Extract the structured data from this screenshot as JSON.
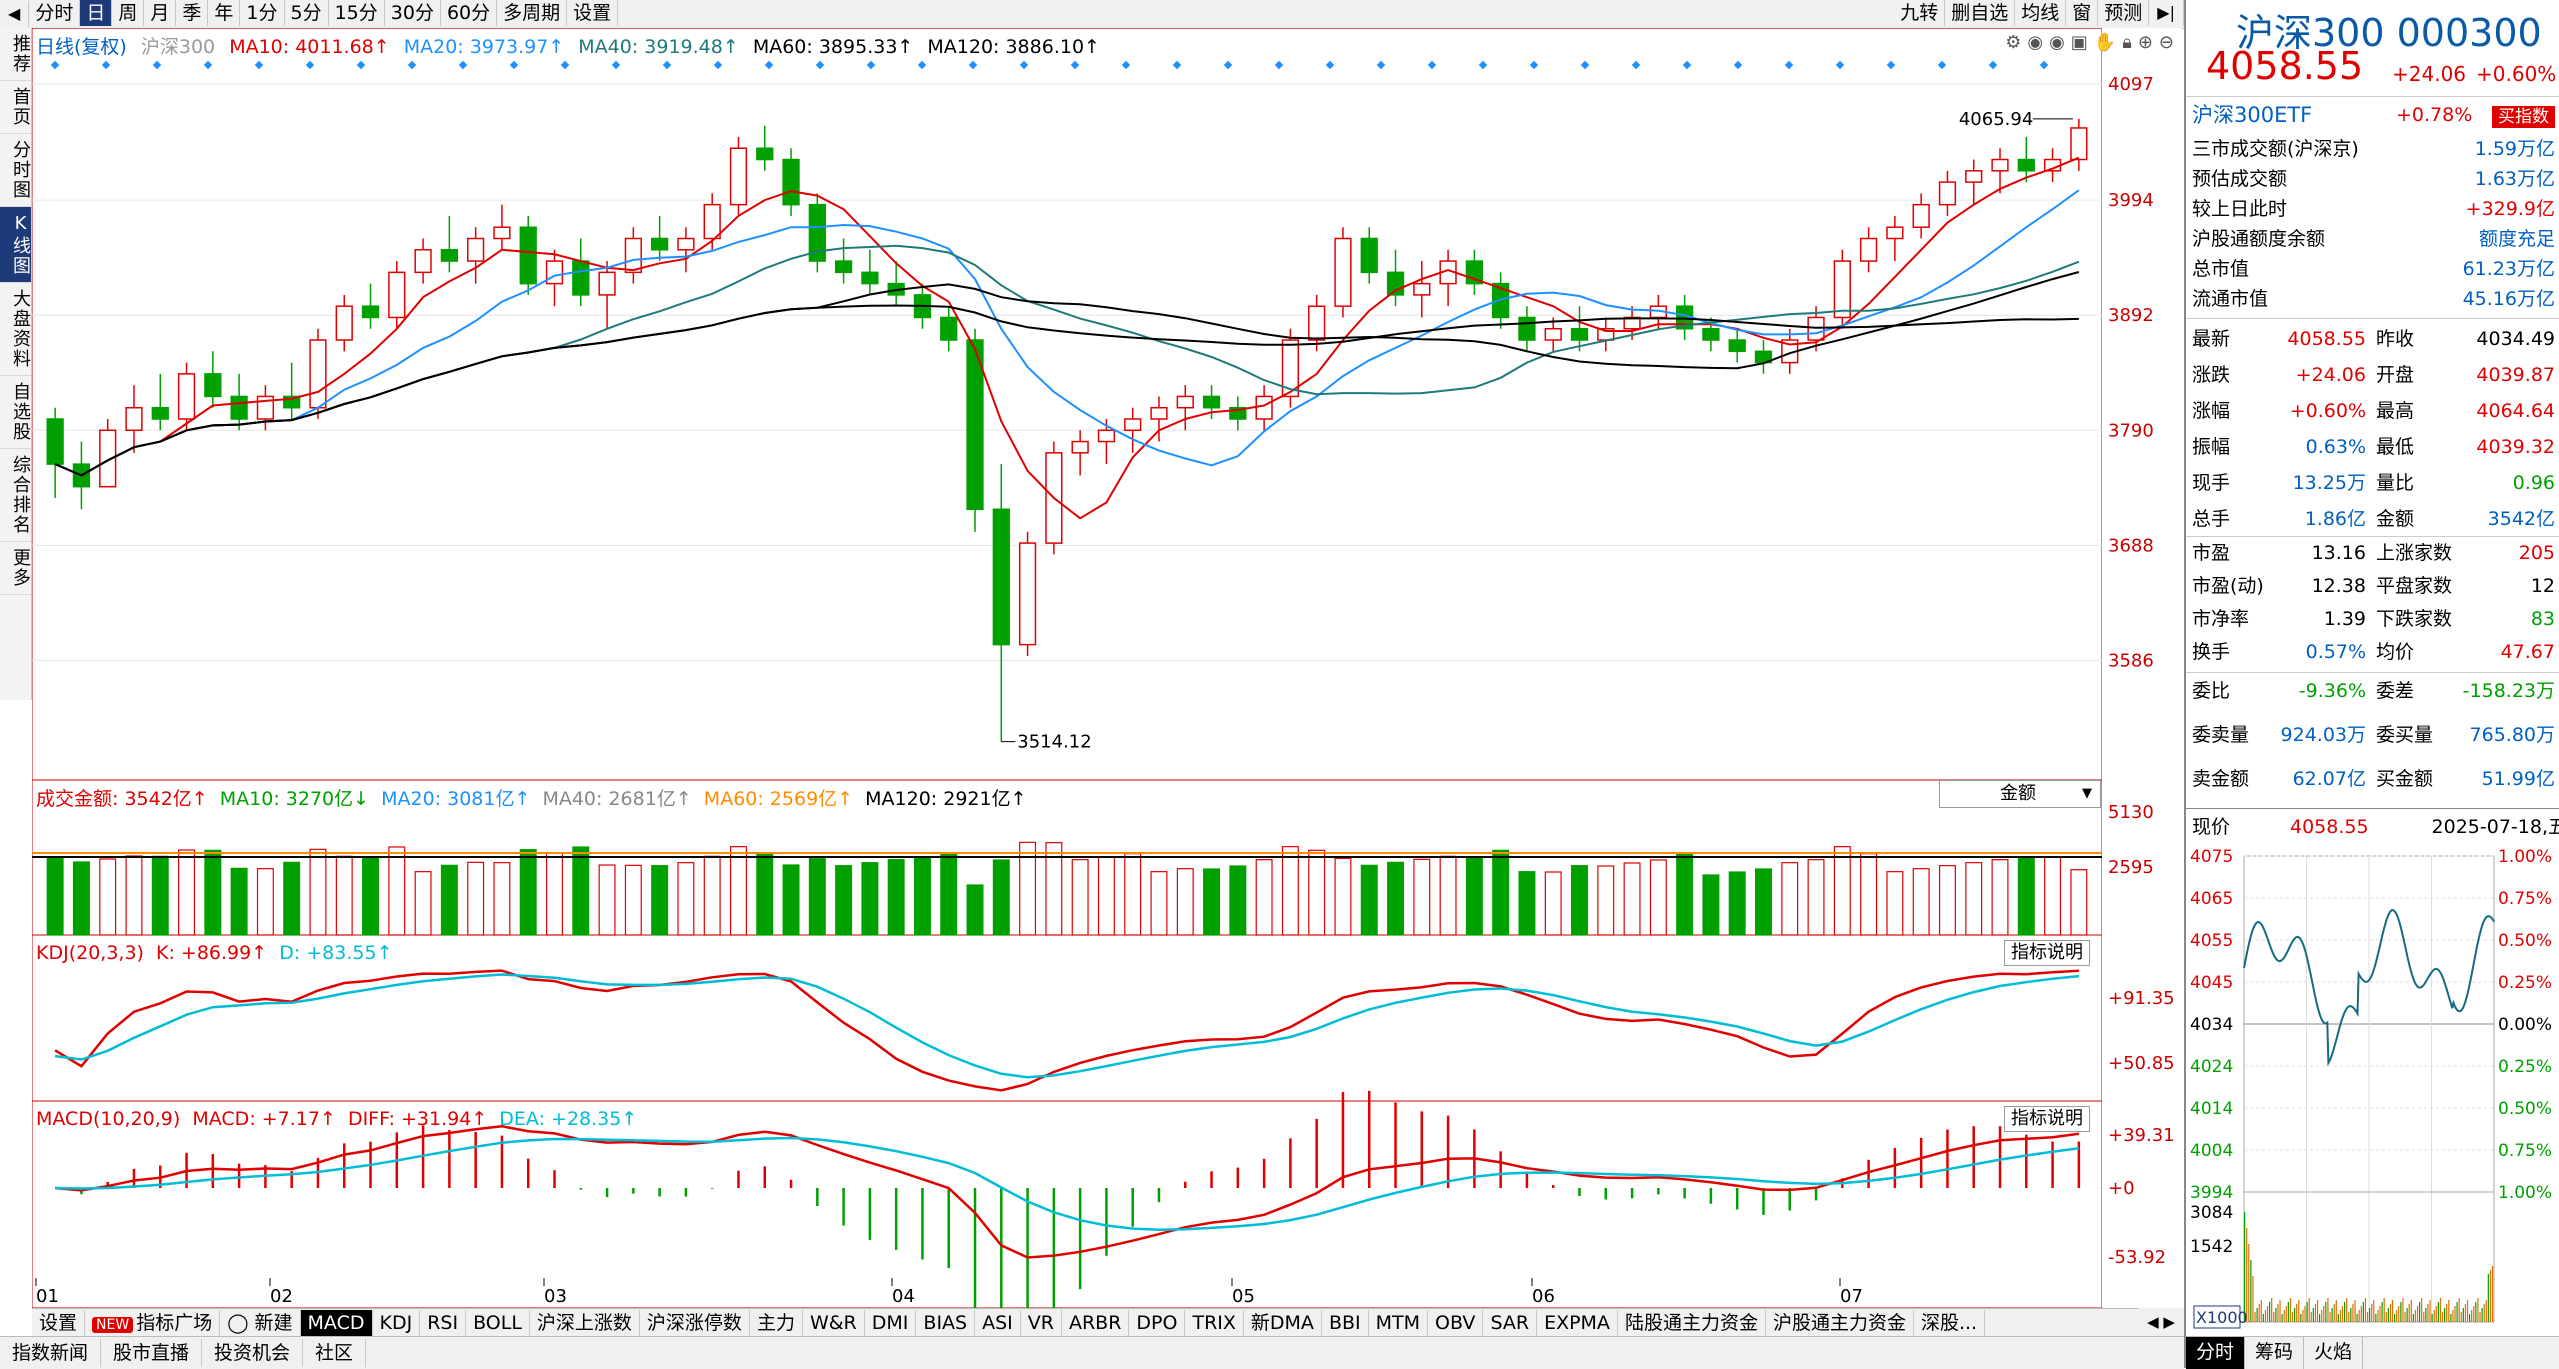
{
  "toolbar": {
    "tabs": [
      "分时",
      "日",
      "周",
      "月",
      "季",
      "年",
      "1分",
      "5分",
      "15分",
      "30分",
      "60分",
      "多周期",
      "设置"
    ],
    "selected_tab": "日",
    "right_tabs": [
      "九转",
      "删自选",
      "均线",
      "窗",
      "预测"
    ]
  },
  "left_nav": [
    "推荐",
    "首页",
    "分时图",
    "K线图",
    "大盘资料",
    "自选股",
    "综合排名",
    "更多"
  ],
  "left_nav_selected": "K线图",
  "main_chart": {
    "header": {
      "label": "日线(复权)",
      "name": "沪深300",
      "ma10": "MA10: 4011.68↑",
      "ma20": "MA20: 3973.97↑",
      "ma40": "MA40: 3919.48↑",
      "ma60": "MA60: 3895.33↑",
      "ma120": "MA120: 3886.10↑"
    },
    "y_ticks": [
      "4097",
      "3994",
      "3892",
      "3790",
      "3688",
      "3586"
    ],
    "high_label": "4065.94",
    "low_label": "3514.12",
    "ylim": [
      3480,
      4120
    ]
  },
  "volume_panel": {
    "label": "成交金额: 3542亿↑",
    "ma10": "MA10: 3270亿↓",
    "ma20": "MA20: 3081亿↑",
    "ma40": "MA40: 2681亿↑",
    "ma60": "MA60: 2569亿↑",
    "ma120": "MA120: 2921亿↑",
    "selector": "金额",
    "y_ticks": [
      "5130",
      "2595"
    ]
  },
  "kdj_panel": {
    "label": "KDJ(20,3,3)",
    "k": "K: +86.99↑",
    "d": "D: +83.55↑",
    "button": "指标说明",
    "y_ticks": [
      "+91.35",
      "+50.85"
    ]
  },
  "macd_panel": {
    "label": "MACD(10,20,9)",
    "macd": "MACD: +7.17↑",
    "diff": "DIFF: +31.94↑",
    "dea": "DEA: +28.35↑",
    "button": "指标说明",
    "y_ticks": [
      "+39.31",
      "+0",
      "-53.92"
    ]
  },
  "x_axis_months": [
    "01",
    "02",
    "03",
    "04",
    "05",
    "06",
    "07"
  ],
  "bottom_tabs": [
    "设置",
    "指标广场",
    "新建",
    "MACD",
    "KDJ",
    "RSI",
    "BOLL",
    "沪深上涨数",
    "沪深涨停数",
    "主力",
    "W&R",
    "DMI",
    "BIAS",
    "ASI",
    "VR",
    "ARBR",
    "DPO",
    "TRIX",
    "新DMA",
    "BBI",
    "MTM",
    "OBV",
    "SAR",
    "EXPMA",
    "陆股通主力资金",
    "沪股通主力资金",
    "深股..."
  ],
  "bottom_selected": "MACD",
  "bottom_links": [
    "指数新闻",
    "股市直播",
    "投资机会",
    "社区"
  ],
  "quote": {
    "title": "沪深300 000300",
    "price": "4058.55",
    "change": "+24.06",
    "change_pct": "+0.60%",
    "etf_name": "沪深300ETF",
    "etf_pct": "+0.78%",
    "etf_button": "买指数",
    "stats": [
      {
        "label": "三市成交额(沪深京)",
        "value": "1.59万亿",
        "color": "blue"
      },
      {
        "label": "预估成交额",
        "value": "1.63万亿",
        "color": "blue"
      },
      {
        "label": "较上日此时",
        "value": "+329.9亿",
        "color": "red"
      },
      {
        "label": "沪股通额度余额",
        "value": "额度充足",
        "color": "blue"
      },
      {
        "label": "总市值",
        "value": "61.23万亿",
        "color": "blue"
      },
      {
        "label": "流通市值",
        "value": "45.16万亿",
        "color": "blue"
      }
    ],
    "grid": [
      {
        "l1": "最新",
        "v1": "4058.55",
        "c1": "red",
        "l2": "昨收",
        "v2": "4034.49",
        "c2": "black"
      },
      {
        "l1": "涨跌",
        "v1": "+24.06",
        "c1": "red",
        "l2": "开盘",
        "v2": "4039.87",
        "c2": "red"
      },
      {
        "l1": "涨幅",
        "v1": "+0.60%",
        "c1": "red",
        "l2": "最高",
        "v2": "4064.64",
        "c2": "red"
      },
      {
        "l1": "振幅",
        "v1": "0.63%",
        "c1": "blue",
        "l2": "最低",
        "v2": "4039.32",
        "c2": "red"
      },
      {
        "l1": "现手",
        "v1": "13.25万",
        "c1": "blue",
        "l2": "量比",
        "v2": "0.96",
        "c2": "green"
      },
      {
        "l1": "总手",
        "v1": "1.86亿",
        "c1": "blue",
        "l2": "金额",
        "v2": "3542亿",
        "c2": "blue"
      }
    ],
    "grid2": [
      {
        "l1": "市盈",
        "v1": "13.16",
        "c1": "black",
        "l2": "上涨家数",
        "v2": "205",
        "c2": "red"
      },
      {
        "l1": "市盈(动)",
        "v1": "12.38",
        "c1": "black",
        "l2": "平盘家数",
        "v2": "12",
        "c2": "black"
      },
      {
        "l1": "市净率",
        "v1": "1.39",
        "c1": "black",
        "l2": "下跌家数",
        "v2": "83",
        "c2": "green"
      },
      {
        "l1": "换手",
        "v1": "0.57%",
        "c1": "blue",
        "l2": "均价",
        "v2": "47.67",
        "c2": "red"
      }
    ],
    "grid3": [
      {
        "l1": "委比",
        "v1": "-9.36%",
        "c1": "green",
        "l2": "委差",
        "v2": "-158.23万",
        "c2": "green"
      },
      {
        "l1": "委卖量",
        "v1": "924.03万",
        "c1": "blue",
        "l2": "委买量",
        "v2": "765.80万",
        "c2": "blue"
      },
      {
        "l1": "卖金额",
        "v1": "62.07亿",
        "c1": "blue",
        "l2": "买金额",
        "v2": "51.99亿",
        "c2": "blue"
      }
    ],
    "mini_header": {
      "label": "现价",
      "price": "4058.55",
      "date": "2025-07-18,五"
    },
    "mini_left_ticks": [
      "4075",
      "4065",
      "4055",
      "4045",
      "4034",
      "4024",
      "4014",
      "4004",
      "3994"
    ],
    "mini_right_ticks": [
      "1.00%",
      "0.75%",
      "0.50%",
      "0.25%",
      "0.00%",
      "0.25%",
      "0.50%",
      "0.75%",
      "1.00%"
    ],
    "mini_vol_ticks": [
      "3084",
      "1542"
    ],
    "mini_zoom": "X1000",
    "mini_tabs": [
      "分时",
      "筹码",
      "火焰"
    ]
  },
  "colors": {
    "up": "#e00000",
    "down": "#00a000",
    "ma10": "#e00000",
    "ma20": "#1e90ff",
    "ma40": "#1f7a7a",
    "ma60": "#000000",
    "ma120": "#000000"
  },
  "chart_data": {
    "type": "candlestick",
    "title": "沪深300",
    "x": [
      "01",
      "02",
      "03",
      "04",
      "05",
      "06",
      "07"
    ],
    "ylim": [
      3480,
      4120
    ],
    "ohlc_approx": [
      [
        3800,
        3810,
        3730,
        3760
      ],
      [
        3760,
        3780,
        3720,
        3740
      ],
      [
        3740,
        3800,
        3740,
        3790
      ],
      [
        3790,
        3830,
        3770,
        3810
      ],
      [
        3810,
        3840,
        3790,
        3800
      ],
      [
        3800,
        3850,
        3790,
        3840
      ],
      [
        3840,
        3860,
        3810,
        3820
      ],
      [
        3820,
        3840,
        3790,
        3800
      ],
      [
        3800,
        3830,
        3790,
        3820
      ],
      [
        3820,
        3850,
        3800,
        3810
      ],
      [
        3810,
        3880,
        3800,
        3870
      ],
      [
        3870,
        3910,
        3860,
        3900
      ],
      [
        3900,
        3920,
        3880,
        3890
      ],
      [
        3890,
        3940,
        3880,
        3930
      ],
      [
        3930,
        3960,
        3920,
        3950
      ],
      [
        3950,
        3980,
        3930,
        3940
      ],
      [
        3940,
        3970,
        3920,
        3960
      ],
      [
        3960,
        3990,
        3950,
        3970
      ],
      [
        3970,
        3980,
        3910,
        3920
      ],
      [
        3920,
        3950,
        3900,
        3940
      ],
      [
        3940,
        3960,
        3900,
        3910
      ],
      [
        3910,
        3940,
        3880,
        3930
      ],
      [
        3930,
        3970,
        3920,
        3960
      ],
      [
        3960,
        3980,
        3940,
        3950
      ],
      [
        3950,
        3970,
        3930,
        3960
      ],
      [
        3960,
        4000,
        3950,
        3990
      ],
      [
        3990,
        4050,
        3980,
        4040
      ],
      [
        4040,
        4060,
        4020,
        4030
      ],
      [
        4030,
        4040,
        3980,
        3990
      ],
      [
        3990,
        4000,
        3930,
        3940
      ],
      [
        3940,
        3960,
        3920,
        3930
      ],
      [
        3930,
        3950,
        3910,
        3920
      ],
      [
        3920,
        3940,
        3900,
        3910
      ],
      [
        3910,
        3920,
        3880,
        3890
      ],
      [
        3890,
        3900,
        3860,
        3870
      ],
      [
        3870,
        3880,
        3700,
        3720
      ],
      [
        3720,
        3760,
        3514,
        3600
      ],
      [
        3600,
        3700,
        3590,
        3690
      ],
      [
        3690,
        3780,
        3680,
        3770
      ],
      [
        3770,
        3790,
        3750,
        3780
      ],
      [
        3780,
        3800,
        3760,
        3790
      ],
      [
        3790,
        3810,
        3770,
        3800
      ],
      [
        3800,
        3820,
        3780,
        3810
      ],
      [
        3810,
        3830,
        3790,
        3820
      ],
      [
        3820,
        3830,
        3800,
        3810
      ],
      [
        3810,
        3820,
        3790,
        3800
      ],
      [
        3800,
        3830,
        3790,
        3820
      ],
      [
        3820,
        3880,
        3810,
        3870
      ],
      [
        3870,
        3910,
        3860,
        3900
      ],
      [
        3900,
        3970,
        3890,
        3960
      ],
      [
        3960,
        3970,
        3920,
        3930
      ],
      [
        3930,
        3950,
        3900,
        3910
      ],
      [
        3910,
        3940,
        3890,
        3920
      ],
      [
        3920,
        3950,
        3900,
        3940
      ],
      [
        3940,
        3950,
        3910,
        3920
      ],
      [
        3920,
        3930,
        3880,
        3890
      ],
      [
        3890,
        3900,
        3860,
        3870
      ],
      [
        3870,
        3890,
        3860,
        3880
      ],
      [
        3880,
        3900,
        3860,
        3870
      ],
      [
        3870,
        3890,
        3860,
        3880
      ],
      [
        3880,
        3900,
        3870,
        3890
      ],
      [
        3890,
        3910,
        3880,
        3900
      ],
      [
        3900,
        3910,
        3870,
        3880
      ],
      [
        3880,
        3890,
        3860,
        3870
      ],
      [
        3870,
        3880,
        3850,
        3860
      ],
      [
        3860,
        3870,
        3840,
        3850
      ],
      [
        3850,
        3880,
        3840,
        3870
      ],
      [
        3870,
        3900,
        3860,
        3890
      ],
      [
        3890,
        3950,
        3880,
        3940
      ],
      [
        3940,
        3970,
        3930,
        3960
      ],
      [
        3960,
        3980,
        3940,
        3970
      ],
      [
        3970,
        4000,
        3960,
        3990
      ],
      [
        3990,
        4020,
        3980,
        4010
      ],
      [
        4010,
        4030,
        3990,
        4020
      ],
      [
        4020,
        4040,
        4000,
        4030
      ],
      [
        4030,
        4050,
        4010,
        4020
      ],
      [
        4020,
        4040,
        4010,
        4030
      ],
      [
        4030,
        4066,
        4020,
        4058
      ]
    ]
  }
}
